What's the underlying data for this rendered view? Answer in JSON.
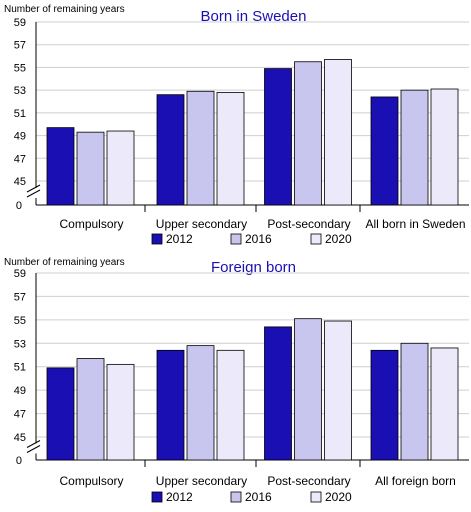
{
  "colors": {
    "series_2012": "#1a0fb3",
    "series_2016": "#c8c6ee",
    "series_2020": "#eceafa",
    "bar_stroke": "#000000",
    "grid": "#cfcfcf",
    "title": "#1a0fb3"
  },
  "chart_data": [
    {
      "type": "bar",
      "title": "Born in Sweden",
      "ylabel": "Number of remaining years",
      "ylim": [
        45,
        59
      ],
      "broken_axis": true,
      "axis_zero_label": "0",
      "yticks": [
        45,
        47,
        49,
        51,
        53,
        55,
        57,
        59
      ],
      "grid": true,
      "legend_position": "below",
      "categories": [
        "Compulsory",
        "Upper secondary",
        "Post-secondary",
        "All born in Sweden"
      ],
      "series": [
        {
          "name": "2012",
          "values": [
            49.7,
            52.6,
            54.9,
            52.4
          ]
        },
        {
          "name": "2016",
          "values": [
            49.3,
            52.9,
            55.5,
            53.0
          ]
        },
        {
          "name": "2020",
          "values": [
            49.4,
            52.8,
            55.7,
            53.1
          ]
        }
      ]
    },
    {
      "type": "bar",
      "title": "Foreign born",
      "ylabel": "Number of remaining years",
      "ylim": [
        45,
        59
      ],
      "broken_axis": true,
      "axis_zero_label": "0",
      "yticks": [
        45,
        47,
        49,
        51,
        53,
        55,
        57,
        59
      ],
      "grid": true,
      "legend_position": "below",
      "categories": [
        "Compulsory",
        "Upper secondary",
        "Post-secondary",
        "All foreign born"
      ],
      "series": [
        {
          "name": "2012",
          "values": [
            50.9,
            52.4,
            54.4,
            52.4
          ]
        },
        {
          "name": "2016",
          "values": [
            51.7,
            52.8,
            55.1,
            53.0
          ]
        },
        {
          "name": "2020",
          "values": [
            51.2,
            52.4,
            54.9,
            52.6
          ]
        }
      ]
    }
  ]
}
